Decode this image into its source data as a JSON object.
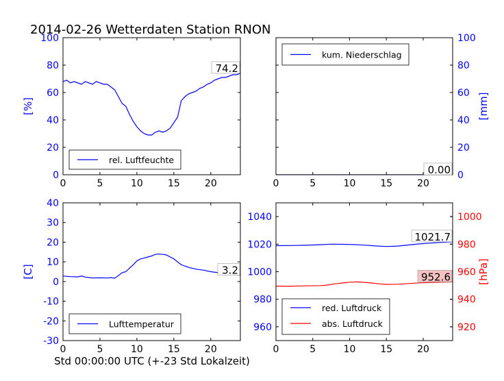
{
  "title": "2014-02-26 Wetterdaten Station RNON",
  "xlabel": "Std 00:00:00 UTC (+-23 Std Lokalzeit)",
  "colors": {
    "blue": "#0000ff",
    "red": "#ff0000",
    "axis": "#000000",
    "value_box_red": "#f4c2c2"
  },
  "chart_data": [
    {
      "id": "humidity",
      "type": "line",
      "ylabel": "[%]",
      "ylabel_side": "left",
      "xlim": [
        0,
        24
      ],
      "ylim": [
        0,
        100
      ],
      "xticks": [
        0,
        5,
        10,
        15,
        20
      ],
      "yticks": [
        0,
        20,
        40,
        60,
        80,
        100
      ],
      "ytick_color": "blue",
      "legend_placement": "lower-left",
      "current_value": "74.2",
      "series": [
        {
          "name": "rel. Luftfeuchte",
          "color": "blue",
          "x": [
            0,
            0.5,
            1,
            1.5,
            2,
            2.5,
            3,
            3.5,
            4,
            4.5,
            5,
            5.5,
            6,
            6.5,
            7,
            7.5,
            8,
            8.5,
            9,
            9.5,
            10,
            10.5,
            11,
            11.5,
            12,
            12.5,
            13,
            13.5,
            14,
            14.5,
            15,
            15.5,
            16,
            16.5,
            17,
            17.5,
            18,
            18.5,
            19,
            19.5,
            20,
            20.5,
            21,
            21.5,
            22,
            22.5,
            23,
            23.5,
            24
          ],
          "values": [
            68,
            69,
            67,
            68,
            67,
            66,
            68,
            67,
            66,
            68,
            67,
            66,
            66,
            64,
            62,
            57,
            52,
            50,
            44,
            39,
            35,
            32,
            30,
            29,
            29,
            31,
            32,
            31,
            32,
            34,
            38,
            42,
            54,
            57,
            59,
            60,
            61,
            63,
            64,
            66,
            67,
            69,
            70,
            71,
            71,
            72,
            73,
            73,
            74
          ]
        }
      ]
    },
    {
      "id": "precipitation",
      "type": "line",
      "ylabel": "[mm]",
      "ylabel_side": "right",
      "xlim": [
        0,
        24
      ],
      "ylim": [
        0,
        100
      ],
      "xticks": [
        0,
        5,
        10,
        15,
        20
      ],
      "yticks": [
        0,
        20,
        40,
        60,
        80,
        100
      ],
      "ytick_color": "blue",
      "legend_placement": "upper-left",
      "current_value": "0.00",
      "series": [
        {
          "name": "kum. Niederschlag",
          "color": "blue",
          "x": [
            0,
            24
          ],
          "values": [
            0,
            0
          ]
        }
      ]
    },
    {
      "id": "temperature",
      "type": "line",
      "ylabel": "[C]",
      "ylabel_side": "left",
      "xlim": [
        0,
        24
      ],
      "ylim": [
        -30,
        40
      ],
      "xticks": [
        0,
        5,
        10,
        15,
        20
      ],
      "yticks": [
        -30,
        -20,
        -10,
        0,
        10,
        20,
        30,
        40
      ],
      "ytick_color": "blue",
      "legend_placement": "lower-left",
      "current_value": "3.2",
      "series": [
        {
          "name": "Lufttemperatur",
          "color": "blue",
          "x": [
            0,
            1,
            2,
            2.5,
            3,
            4,
            5,
            6,
            6.5,
            7,
            7.5,
            8,
            8.5,
            9,
            9.5,
            10,
            10.5,
            11,
            11.5,
            12,
            12.5,
            13,
            13.5,
            14,
            14.5,
            15,
            15.5,
            16,
            17,
            18,
            19,
            20,
            21,
            22,
            23,
            24
          ],
          "values": [
            2.8,
            2.5,
            2.4,
            2.8,
            2.3,
            1.8,
            1.9,
            1.8,
            2.0,
            1.7,
            3.0,
            4.5,
            5.0,
            6.8,
            8.5,
            10.5,
            11.5,
            12.0,
            12.5,
            13.0,
            13.8,
            14.0,
            13.8,
            13.5,
            12.5,
            11.5,
            10.0,
            8.5,
            7.2,
            6.3,
            5.8,
            5.0,
            4.5,
            3.8,
            3.4,
            3.2
          ]
        }
      ]
    },
    {
      "id": "pressure",
      "type": "line",
      "ylabel": "[hPa]",
      "ylabel_side": "right",
      "xlim": [
        0,
        24
      ],
      "ylim": [
        950,
        1050
      ],
      "ylim_right": [
        910,
        1010
      ],
      "xticks": [
        0,
        5,
        10,
        15,
        20
      ],
      "yticks": [
        960,
        980,
        1000,
        1020,
        1040
      ],
      "ytick_color": "blue",
      "yticks_right": [
        920,
        940,
        960,
        980,
        1000
      ],
      "ytick_right_color": "red",
      "legend_placement": "lower-left",
      "current_value": "1021.7",
      "current_value_right": "952.6",
      "series": [
        {
          "name": "red. Luftdruck",
          "color": "blue",
          "axis": "left",
          "x": [
            0,
            2,
            4,
            6,
            7.5,
            9,
            10.5,
            12,
            13.5,
            15,
            16.5,
            18,
            19.5,
            21,
            22.5,
            24
          ],
          "values": [
            1018.9,
            1019.0,
            1019.2,
            1019.6,
            1020.0,
            1019.9,
            1019.7,
            1019.3,
            1018.7,
            1018.3,
            1018.6,
            1019.4,
            1020.2,
            1020.8,
            1021.3,
            1021.7
          ]
        },
        {
          "name": "abs. Luftdruck",
          "color": "red",
          "axis": "right",
          "x": [
            0,
            2,
            4,
            6,
            7,
            8,
            9,
            10,
            11,
            12,
            13,
            14,
            15,
            16.5,
            18,
            19.5,
            21,
            22.5,
            24
          ],
          "values": [
            949.5,
            949.5,
            949.7,
            949.9,
            950.3,
            951.2,
            951.8,
            952.4,
            952.6,
            952.3,
            951.8,
            951.2,
            950.8,
            950.9,
            951.4,
            951.9,
            952.2,
            952.4,
            952.6
          ]
        }
      ]
    }
  ]
}
